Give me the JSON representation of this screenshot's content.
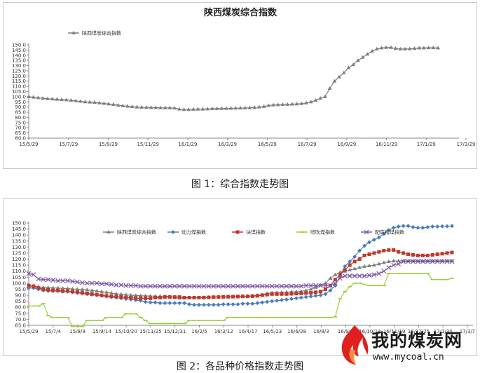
{
  "captions": {
    "fig1": "图 1：综合指数走势图",
    "fig2": "图 2：各品种价格指数走势图"
  },
  "watermark": {
    "title": "我的煤炭网",
    "url": "www.mycoal.cn"
  },
  "chart_data": [
    {
      "type": "line",
      "title": "陕西煤炭综合指数",
      "legend_position": "top-left",
      "grid": false,
      "ylim": [
        60,
        150
      ],
      "ytick_step": 5,
      "x_ticks": [
        "15/5/29",
        "15/7/29",
        "15/9/29",
        "15/11/29",
        "16/1/29",
        "16/3/29",
        "16/5/29",
        "16/7/29",
        "16/9/29",
        "16/11/29",
        "17/1/29",
        "17/3/29"
      ],
      "n_points": 88,
      "series": [
        {
          "name": "陕西煤炭综合指数",
          "color": "#7f7f7f",
          "values": [
            100,
            99.5,
            99,
            98.5,
            98,
            97.8,
            97.5,
            97.2,
            97,
            96.5,
            96,
            95.5,
            95,
            94.8,
            94.5,
            94,
            93.5,
            93,
            92.5,
            91.8,
            91.2,
            90.8,
            90.4,
            90,
            89.8,
            89.6,
            89.5,
            89.4,
            89.3,
            89.2,
            89.2,
            89,
            88,
            87.6,
            87.6,
            87.8,
            88,
            88,
            88.2,
            88.4,
            88.5,
            88.6,
            88.7,
            88.8,
            88.9,
            89,
            89.1,
            89.3,
            89.6,
            90,
            90.5,
            91.5,
            92,
            92.2,
            92.4,
            92.6,
            92.8,
            93,
            93.3,
            94,
            95,
            96.5,
            98.5,
            100,
            108,
            115,
            119,
            123,
            128,
            131,
            135,
            138,
            141,
            144,
            146,
            147,
            147.5,
            147.5,
            146.5,
            146,
            146,
            146.2,
            146.5,
            147,
            147,
            147.2,
            147.2,
            147
          ]
        }
      ]
    },
    {
      "type": "line",
      "title": "",
      "legend_position": "top",
      "grid": false,
      "ylim": [
        65,
        150
      ],
      "ytick_step": 5,
      "x_ticks": [
        "15/5/29",
        "15/7/4",
        "15/8/9",
        "15/9/14",
        "15/10/20",
        "15/11/25",
        "15/12/31",
        "16/2/5",
        "16/3/12",
        "16/4/17",
        "16/5/23",
        "16/6/28",
        "16/8/3",
        "16/9/8",
        "16/10/14",
        "16/11/19",
        "16/12/25",
        "17/1/30",
        "17/3/7"
      ],
      "n_points": 88,
      "series": [
        {
          "name": "陕西煤炭综合指数",
          "color": "#7f7f7f",
          "values": [
            97.5,
            97.5,
            97,
            96.5,
            96.3,
            96.1,
            96,
            95.7,
            95.5,
            95.2,
            95,
            94.8,
            94.5,
            94,
            93.5,
            93,
            92.5,
            91.8,
            91.2,
            90.8,
            90.4,
            90,
            89.8,
            89.6,
            89.5,
            89.4,
            89.3,
            89.2,
            89.2,
            89,
            88,
            87.6,
            87.6,
            87.8,
            88,
            88,
            88.2,
            88.4,
            88.5,
            88.6,
            88.7,
            88.8,
            88.9,
            89,
            89.1,
            89.3,
            89.6,
            90,
            90.5,
            91.5,
            92,
            92.2,
            92.4,
            92.6,
            92.8,
            93,
            93.3,
            94,
            95,
            96.5,
            98.5,
            100,
            104,
            107,
            109,
            110,
            111,
            112,
            113,
            114,
            114.5,
            115,
            116,
            117,
            118,
            118.5,
            118.5,
            118.5,
            118.5,
            118.5,
            118.5,
            118.5,
            118.5,
            118.5,
            118.5,
            118.5,
            118.5,
            118.5
          ]
        },
        {
          "name": "动力煤指数",
          "color": "#4a7ebb",
          "values": [
            96,
            96,
            95,
            94,
            93.5,
            93.5,
            93.5,
            93,
            93,
            92.5,
            92,
            91.5,
            91,
            90.5,
            90,
            89.5,
            89,
            88.5,
            88,
            87.5,
            87,
            86.5,
            86,
            85.5,
            84.5,
            84,
            84,
            83.5,
            83.5,
            83.5,
            83.5,
            83.5,
            83.5,
            82.5,
            82,
            82,
            82,
            82,
            82,
            82,
            82.5,
            82.5,
            82.5,
            82.5,
            83,
            83,
            83,
            83.5,
            84,
            84.5,
            85,
            85.5,
            86,
            86.5,
            87,
            87.5,
            88,
            88.5,
            89,
            89.5,
            90,
            91,
            94,
            98,
            106,
            114,
            118,
            122,
            127,
            131,
            134,
            136,
            138,
            141,
            144,
            146,
            147,
            147.5,
            147.5,
            146.5,
            146,
            146,
            146.5,
            147,
            147,
            147.2,
            147.2,
            147.5
          ]
        },
        {
          "name": "块煤指数",
          "color": "#c0392b",
          "values": [
            98,
            97.5,
            96,
            95,
            94.5,
            94,
            94,
            93.5,
            93.5,
            93,
            92.5,
            92,
            91.5,
            91,
            90.5,
            90,
            89.5,
            89,
            89,
            88.5,
            88,
            88,
            87.5,
            87.5,
            87.5,
            87.5,
            88,
            88,
            88.5,
            88.5,
            88.5,
            88.5,
            88,
            88,
            88,
            88,
            88,
            88.2,
            88.4,
            88.5,
            88.6,
            88.7,
            88.8,
            88.9,
            89,
            89,
            89.2,
            89.5,
            90,
            90.5,
            91,
            91,
            91,
            91,
            91.2,
            91.4,
            91.6,
            91.8,
            92,
            92.5,
            93,
            95,
            98,
            103,
            107,
            111,
            115,
            118,
            120,
            123,
            124,
            125,
            126,
            127,
            127.5,
            127.5,
            126,
            125,
            124,
            123.5,
            123,
            123,
            123,
            123.5,
            124,
            124.5,
            125,
            125.5
          ]
        },
        {
          "name": "喷吹煤指数",
          "color": "#9acd32",
          "values": [
            81,
            81,
            81,
            83,
            73,
            71.5,
            71.5,
            71.5,
            71.5,
            64,
            64,
            64,
            69,
            69,
            69,
            69,
            71.5,
            71.5,
            71.5,
            71.5,
            74.5,
            74.5,
            74.5,
            71.5,
            69,
            66.5,
            66.5,
            66.5,
            66.5,
            66.5,
            66.5,
            66.5,
            66.5,
            69,
            69,
            69,
            69,
            69,
            69,
            69,
            69,
            71.5,
            71.5,
            71.5,
            71.5,
            71.5,
            71.5,
            71.5,
            71.5,
            71.5,
            71.5,
            71.5,
            71.5,
            71.5,
            71.5,
            71.5,
            71.5,
            71.5,
            71.5,
            71.5,
            71.5,
            71.5,
            71.5,
            72,
            87,
            93,
            97,
            100,
            100,
            99,
            98,
            98,
            98,
            98,
            108,
            108,
            108,
            108,
            108,
            108,
            108,
            108,
            108,
            103,
            103,
            103,
            103,
            104
          ]
        },
        {
          "name": "配焦精煤指数",
          "color": "#7e57a8",
          "values": [
            108,
            107,
            103.5,
            103,
            103,
            102.5,
            102,
            102,
            102,
            101.5,
            101,
            100.5,
            100,
            100,
            100,
            99.5,
            99.5,
            99,
            98.5,
            98.5,
            98,
            98,
            98,
            97.5,
            97.5,
            97.5,
            97.5,
            97.5,
            97.5,
            97.5,
            97.5,
            97.5,
            97.5,
            97.5,
            97.5,
            97.5,
            97.5,
            97.5,
            97.5,
            97.5,
            97.5,
            97.5,
            97.5,
            97.5,
            97.5,
            97.5,
            97.5,
            97.5,
            97.5,
            97.5,
            97.5,
            97.5,
            97.5,
            97.5,
            97.5,
            97.5,
            97.5,
            98,
            98,
            98,
            98,
            98,
            98,
            100,
            104,
            106,
            106,
            106,
            106,
            106,
            106.5,
            107,
            108,
            110,
            113,
            115,
            116,
            118,
            118,
            118,
            118,
            118,
            118,
            118,
            118,
            118,
            118,
            118
          ]
        }
      ]
    }
  ]
}
